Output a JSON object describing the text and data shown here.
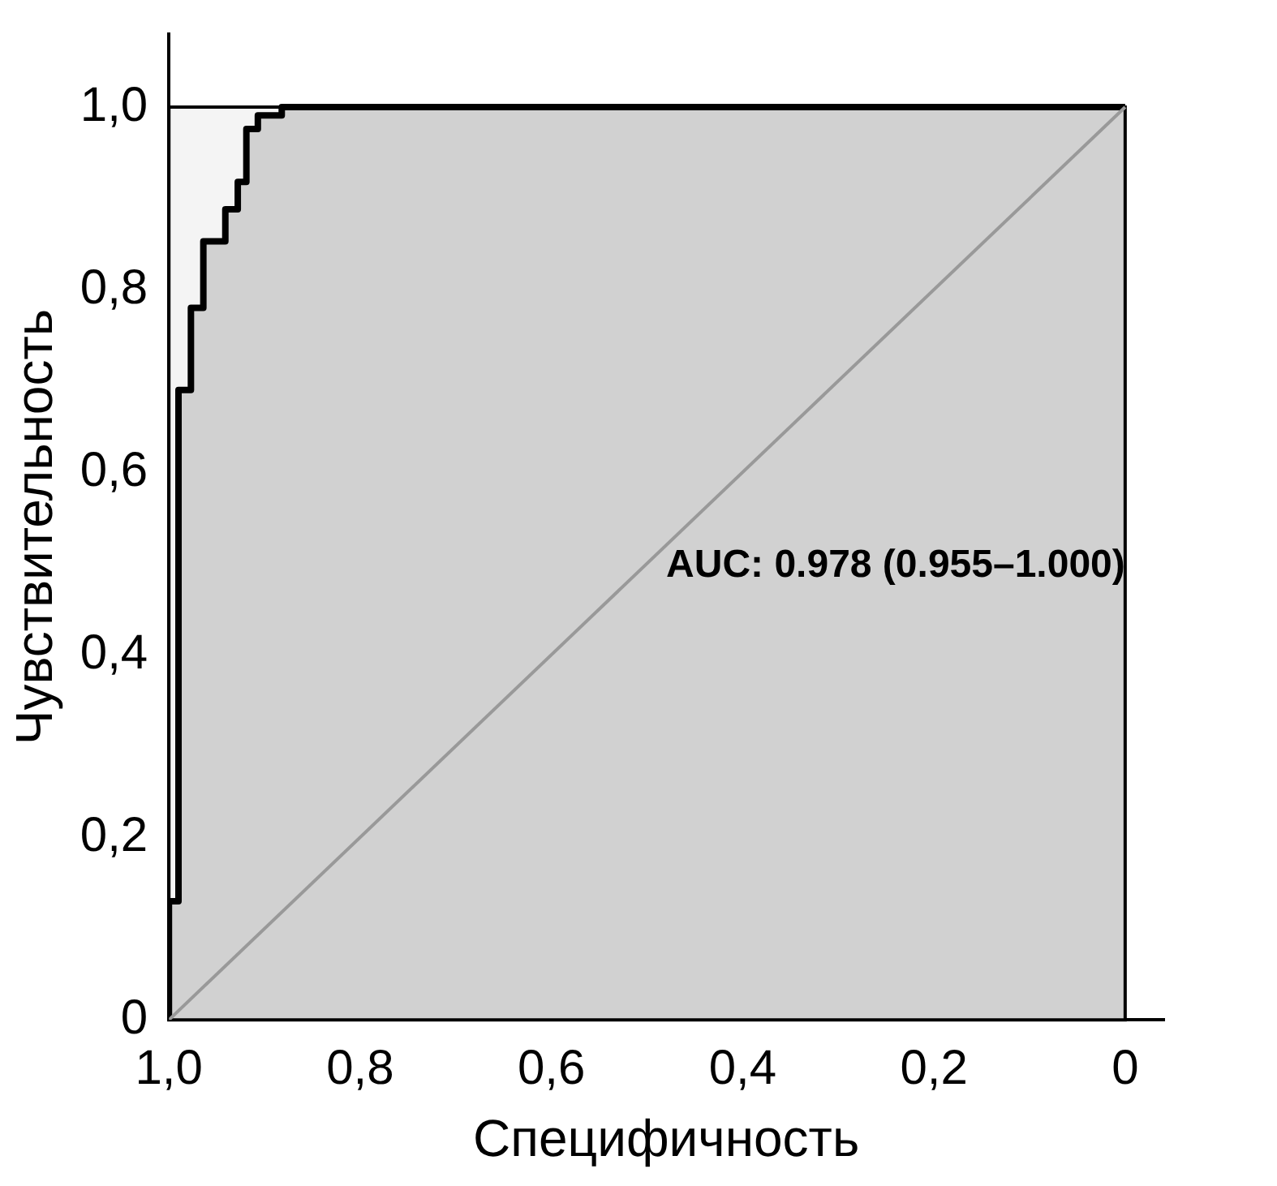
{
  "chart_data": {
    "type": "step",
    "xlabel": "Специфичность",
    "ylabel": "Чувствительность",
    "xlim": [
      1,
      -0.04
    ],
    "ylim": [
      0,
      1.08
    ],
    "xticks": [
      {
        "value": 1,
        "label": "1,0"
      },
      {
        "value": 0.8,
        "label": "0,8"
      },
      {
        "value": 0.6,
        "label": "0,6"
      },
      {
        "value": 0.4,
        "label": "0,4"
      },
      {
        "value": 0.2,
        "label": "0,2"
      },
      0
    ],
    "yticks": [
      0,
      {
        "value": 0.2,
        "label": "0,2"
      },
      {
        "value": 0.4,
        "label": "0,4"
      },
      {
        "value": 0.6,
        "label": "0,6"
      },
      {
        "value": 0.8,
        "label": "0,8"
      },
      {
        "value": 1,
        "label": "1,0"
      }
    ],
    "series": [
      {
        "color": "#000000",
        "x": [
          1,
          0.99,
          0.977,
          0.964,
          0.941,
          0.928,
          0.919,
          0.907,
          0.882,
          0
        ],
        "values": [
          0,
          0.13,
          0.69,
          0.78,
          0.853,
          0.888,
          0.918,
          0.976,
          0.991,
          1
        ]
      },
      {
        "type": "line",
        "color": "#999999",
        "x": [
          1,
          0
        ],
        "values": [
          0,
          1
        ]
      }
    ],
    "annotations": [
      "AUC: 0.978 (0.955–1.000)"
    ],
    "grid": false,
    "legend": false
  }
}
